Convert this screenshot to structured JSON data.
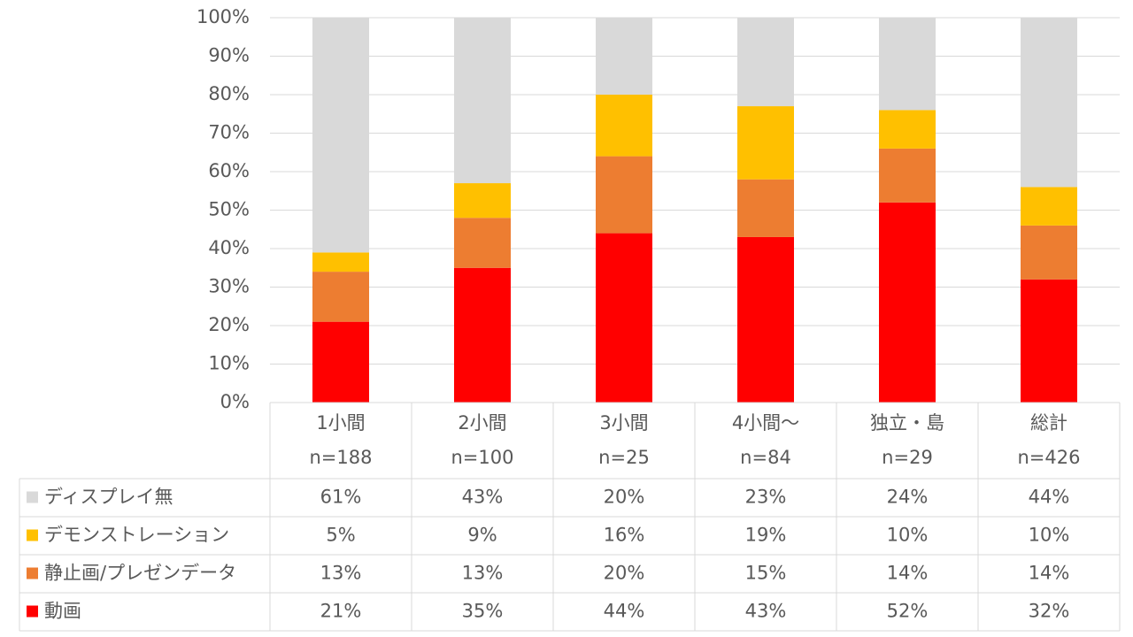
{
  "chart_data": {
    "type": "stacked_bar",
    "categories": [
      "1小間",
      "2小間",
      "3小間",
      "4小間～",
      "独立・島",
      "総計"
    ],
    "sample_sizes": [
      "n=188",
      "n=100",
      "n=25",
      "n=84",
      "n=29",
      "n=426"
    ],
    "series": [
      {
        "name": "ディスプレイ無",
        "color": "#d9d9d9",
        "values": [
          61,
          43,
          20,
          23,
          24,
          44
        ],
        "value_labels": [
          "61%",
          "43%",
          "20%",
          "23%",
          "24%",
          "44%"
        ]
      },
      {
        "name": "デモンストレーション",
        "color": "#ffc000",
        "values": [
          5,
          9,
          16,
          19,
          10,
          10
        ],
        "value_labels": [
          "5%",
          "9%",
          "16%",
          "19%",
          "10%",
          "10%"
        ]
      },
      {
        "name": "静止画/プレゼンデータ",
        "color": "#ed7d31",
        "values": [
          13,
          13,
          20,
          15,
          14,
          14
        ],
        "value_labels": [
          "13%",
          "13%",
          "20%",
          "15%",
          "14%",
          "14%"
        ]
      },
      {
        "name": "動画",
        "color": "#ff0000",
        "values": [
          21,
          35,
          44,
          43,
          52,
          32
        ],
        "value_labels": [
          "21%",
          "35%",
          "44%",
          "43%",
          "52%",
          "32%"
        ]
      }
    ],
    "ylim": [
      0,
      100
    ],
    "yticks": [
      {
        "value": 0,
        "label": "0%"
      },
      {
        "value": 10,
        "label": "10%"
      },
      {
        "value": 20,
        "label": "20%"
      },
      {
        "value": 30,
        "label": "30%"
      },
      {
        "value": 40,
        "label": "40%"
      },
      {
        "value": 50,
        "label": "50%"
      },
      {
        "value": 60,
        "label": "60%"
      },
      {
        "value": 70,
        "label": "70%"
      },
      {
        "value": 80,
        "label": "80%"
      },
      {
        "value": 90,
        "label": "90%"
      },
      {
        "value": 100,
        "label": "100%"
      }
    ],
    "grid": true
  }
}
